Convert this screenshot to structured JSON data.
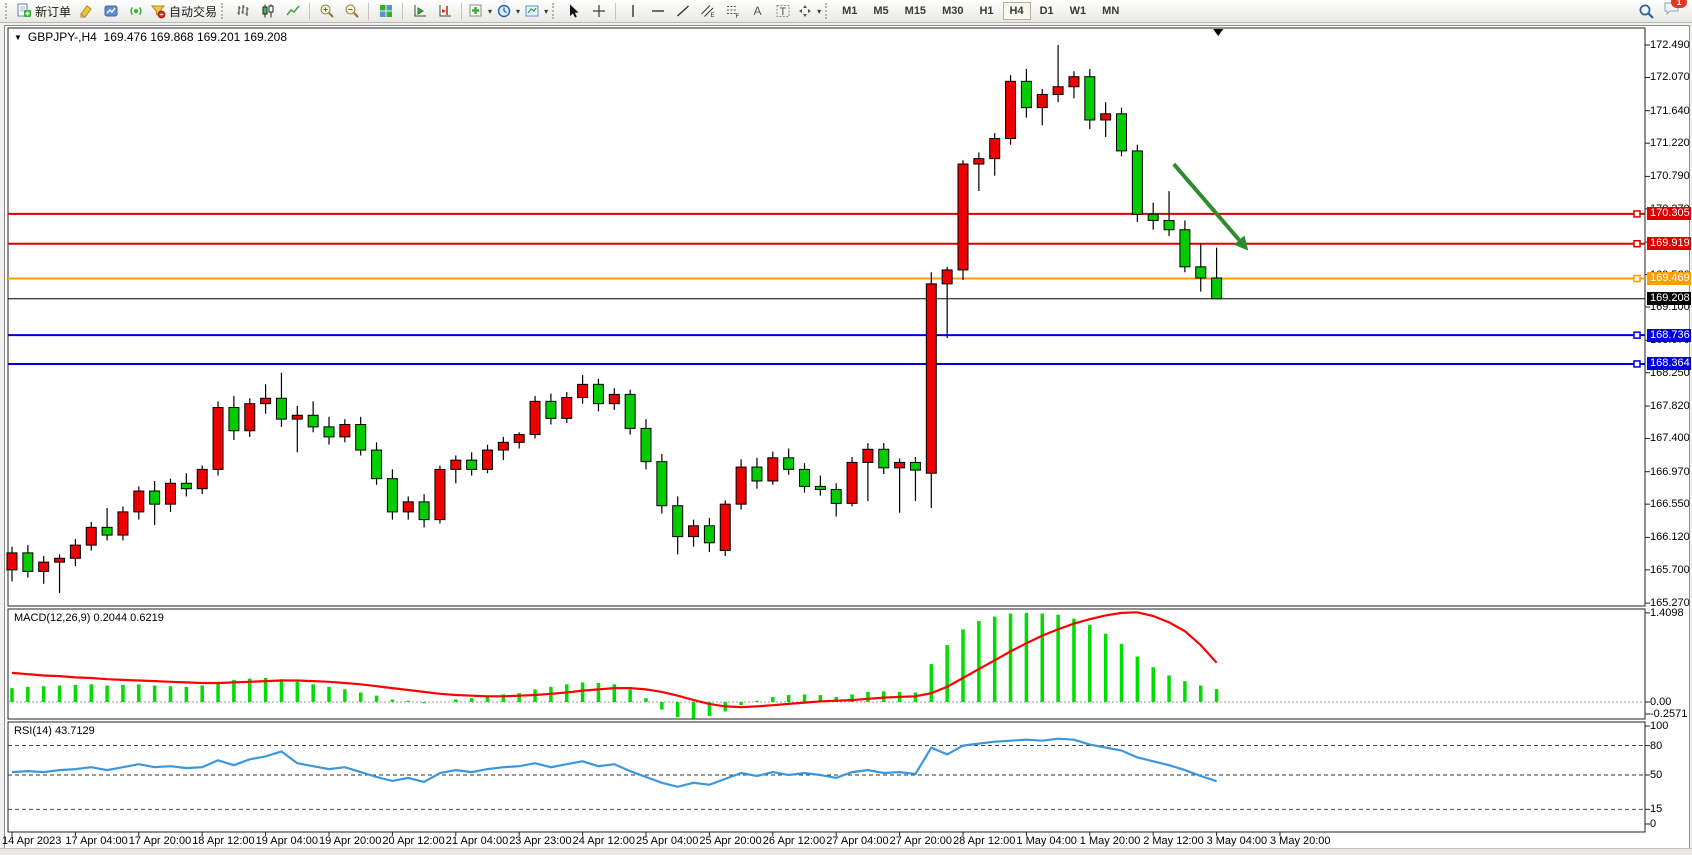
{
  "toolbar": {
    "new_order_label": "新订单",
    "autotrading_label": "自动交易",
    "timeframes": [
      "M1",
      "M5",
      "M15",
      "M30",
      "H1",
      "H4",
      "D1",
      "W1",
      "MN"
    ],
    "active_timeframe": "H4",
    "notification_count": "1",
    "icons": [
      "new-order-icon",
      "metaeditor-icon",
      "market-watch-icon",
      "signals-icon",
      "autotrading-icon",
      "bar-chart-icon",
      "candlestick-icon",
      "line-chart-icon",
      "zoom-in-icon",
      "zoom-out-icon",
      "tile-windows-icon",
      "auto-scroll-icon",
      "chart-shift-icon",
      "indicators-icon",
      "periods-icon",
      "templates-icon",
      "cursor-icon",
      "crosshair-icon",
      "vertical-line-icon",
      "horizontal-line-icon",
      "trendline-icon",
      "channel-icon",
      "fibonacci-icon",
      "text-icon",
      "text-label-icon",
      "shapes-icon",
      "search-icon",
      "chat-icon"
    ]
  },
  "chart": {
    "title_symbol": "GBPJPY-,H4",
    "title_ohlc": "169.476 169.868 169.201 169.208",
    "macd_label": "MACD(12,26,9) 0.2044 0.6219",
    "rsi_label": "RSI(14) 43.7129"
  },
  "chart_data": {
    "type": "candlestick",
    "symbol": "GBPJPY-",
    "timeframe": "H4",
    "current_ohlc": {
      "open": 169.476,
      "high": 169.868,
      "low": 169.201,
      "close": 169.208
    },
    "colors": {
      "bull": "#ee0000",
      "bear": "#00cc00",
      "wick": "#000000",
      "macd_hist": "#00dd00",
      "macd_signal": "#ff0000",
      "rsi_line": "#3c96dc",
      "arrow": "#2e8b2e",
      "line_red": "#dd0000",
      "line_orange": "#ff9c00",
      "line_blue": "#0000dd",
      "line_current": "#000000"
    },
    "price_panel": {
      "ylim": [
        165.23,
        172.71
      ],
      "yticks": [
        "172.490",
        "172.070",
        "171.640",
        "171.220",
        "170.790",
        "170.370",
        "169.940",
        "169.520",
        "169.100",
        "168.670",
        "168.250",
        "167.820",
        "167.400",
        "166.970",
        "166.550",
        "166.120",
        "165.700",
        "165.270"
      ],
      "hlines": [
        {
          "price": 170.305,
          "label": "170.305",
          "color": "#dd0000"
        },
        {
          "price": 169.919,
          "label": "169.919",
          "color": "#dd0000"
        },
        {
          "price": 169.469,
          "label": "169.469",
          "color": "#ff9c00"
        },
        {
          "price": 168.736,
          "label": "168.736",
          "color": "#0000dd"
        },
        {
          "price": 168.364,
          "label": "168.364",
          "color": "#0000dd"
        }
      ],
      "current_price": {
        "price": 169.208,
        "label": "169.208",
        "color": "#000000"
      },
      "arrow": {
        "from_bar": 73.3,
        "from_price": 170.95,
        "to_bar": 78.0,
        "to_price": 169.83
      },
      "marker_bar": 76.1,
      "first_bar_time": "14 Apr 2023 12:00",
      "candles": [
        [
          165.7,
          166.0,
          165.55,
          165.92
        ],
        [
          165.92,
          166.02,
          165.6,
          165.68
        ],
        [
          165.68,
          165.88,
          165.52,
          165.8
        ],
        [
          165.8,
          165.9,
          165.4,
          165.85
        ],
        [
          165.85,
          166.1,
          165.75,
          166.02
        ],
        [
          166.02,
          166.32,
          165.95,
          166.25
        ],
        [
          166.25,
          166.5,
          166.08,
          166.15
        ],
        [
          166.15,
          166.52,
          166.08,
          166.45
        ],
        [
          166.45,
          166.78,
          166.35,
          166.72
        ],
        [
          166.72,
          166.85,
          166.28,
          166.55
        ],
        [
          166.55,
          166.88,
          166.45,
          166.82
        ],
        [
          166.82,
          166.95,
          166.65,
          166.75
        ],
        [
          166.75,
          167.05,
          166.68,
          167.0
        ],
        [
          167.0,
          167.88,
          166.92,
          167.8
        ],
        [
          167.8,
          167.95,
          167.38,
          167.5
        ],
        [
          167.5,
          167.92,
          167.42,
          167.85
        ],
        [
          167.85,
          168.1,
          167.72,
          167.92
        ],
        [
          167.92,
          168.25,
          167.55,
          167.65
        ],
        [
          167.65,
          167.82,
          167.22,
          167.7
        ],
        [
          167.7,
          167.88,
          167.48,
          167.55
        ],
        [
          167.55,
          167.68,
          167.32,
          167.42
        ],
        [
          167.42,
          167.65,
          167.35,
          167.58
        ],
        [
          167.58,
          167.68,
          167.18,
          167.25
        ],
        [
          167.25,
          167.35,
          166.8,
          166.88
        ],
        [
          166.88,
          167.0,
          166.35,
          166.45
        ],
        [
          166.45,
          166.65,
          166.35,
          166.58
        ],
        [
          166.58,
          166.68,
          166.25,
          166.35
        ],
        [
          166.35,
          167.05,
          166.3,
          167.0
        ],
        [
          167.0,
          167.18,
          166.82,
          167.12
        ],
        [
          167.12,
          167.22,
          166.92,
          167.0
        ],
        [
          167.0,
          167.32,
          166.95,
          167.25
        ],
        [
          167.25,
          167.42,
          167.12,
          167.35
        ],
        [
          167.35,
          167.48,
          167.27,
          167.45
        ],
        [
          167.45,
          167.95,
          167.4,
          167.88
        ],
        [
          167.88,
          167.98,
          167.58,
          167.66
        ],
        [
          167.66,
          168.0,
          167.6,
          167.93
        ],
        [
          167.93,
          168.22,
          167.85,
          168.1
        ],
        [
          168.1,
          168.17,
          167.75,
          167.85
        ],
        [
          167.85,
          168.05,
          167.77,
          167.97
        ],
        [
          167.97,
          168.03,
          167.45,
          167.53
        ],
        [
          167.53,
          167.65,
          167.0,
          167.1
        ],
        [
          167.1,
          167.2,
          166.43,
          166.53
        ],
        [
          166.53,
          166.65,
          165.9,
          166.13
        ],
        [
          166.13,
          166.35,
          166.0,
          166.27
        ],
        [
          166.27,
          166.37,
          165.93,
          166.05
        ],
        [
          165.95,
          166.6,
          165.88,
          166.55
        ],
        [
          166.55,
          167.13,
          166.48,
          167.03
        ],
        [
          167.03,
          167.15,
          166.75,
          166.85
        ],
        [
          166.85,
          167.23,
          166.8,
          167.15
        ],
        [
          167.15,
          167.27,
          166.93,
          167.0
        ],
        [
          167.0,
          167.08,
          166.7,
          166.78
        ],
        [
          166.78,
          166.92,
          166.66,
          166.74
        ],
        [
          166.74,
          166.82,
          166.39,
          166.56
        ],
        [
          166.56,
          167.16,
          166.52,
          167.09
        ],
        [
          167.09,
          167.34,
          166.59,
          167.26
        ],
        [
          167.26,
          167.34,
          166.94,
          167.02
        ],
        [
          167.02,
          167.14,
          166.44,
          167.09
        ],
        [
          167.09,
          167.16,
          166.59,
          166.99
        ],
        [
          166.95,
          169.55,
          166.5,
          169.4
        ],
        [
          169.4,
          169.62,
          168.7,
          169.58
        ],
        [
          169.58,
          171.0,
          169.45,
          170.95
        ],
        [
          170.95,
          171.1,
          170.6,
          171.02
        ],
        [
          171.02,
          171.35,
          170.8,
          171.28
        ],
        [
          171.28,
          172.1,
          171.2,
          172.02
        ],
        [
          172.02,
          172.18,
          171.55,
          171.68
        ],
        [
          171.68,
          171.92,
          171.45,
          171.85
        ],
        [
          171.85,
          172.49,
          171.75,
          171.95
        ],
        [
          171.95,
          172.15,
          171.8,
          172.08
        ],
        [
          172.08,
          172.18,
          171.4,
          171.52
        ],
        [
          171.52,
          171.75,
          171.3,
          171.6
        ],
        [
          171.6,
          171.68,
          171.05,
          171.12
        ],
        [
          171.12,
          171.2,
          170.2,
          170.3
        ],
        [
          170.3,
          170.45,
          170.1,
          170.22
        ],
        [
          170.22,
          170.6,
          170.02,
          170.1
        ],
        [
          170.1,
          170.22,
          169.55,
          169.62
        ],
        [
          169.62,
          169.92,
          169.3,
          169.476
        ],
        [
          169.476,
          169.868,
          169.201,
          169.208
        ]
      ]
    },
    "macd_panel": {
      "label": "MACD(12,26,9) 0.2044 0.6219",
      "yticks": [
        {
          "value": 1.4098,
          "label": "1.4098"
        },
        {
          "value": 0.0,
          "label": "0.00"
        },
        {
          "value": -0.2571,
          "label": "-0.2571"
        }
      ],
      "histogram": [
        0.22,
        0.24,
        0.25,
        0.26,
        0.27,
        0.28,
        0.26,
        0.27,
        0.28,
        0.26,
        0.25,
        0.24,
        0.26,
        0.32,
        0.35,
        0.37,
        0.38,
        0.36,
        0.32,
        0.28,
        0.24,
        0.2,
        0.15,
        0.1,
        0.04,
        0.02,
        -0.02,
        0.0,
        0.04,
        0.06,
        0.09,
        0.12,
        0.14,
        0.2,
        0.24,
        0.28,
        0.31,
        0.3,
        0.28,
        0.2,
        0.06,
        -0.12,
        -0.24,
        -0.26,
        -0.22,
        -0.15,
        -0.05,
        0.02,
        0.08,
        0.11,
        0.12,
        0.11,
        0.08,
        0.12,
        0.16,
        0.17,
        0.16,
        0.15,
        0.6,
        0.9,
        1.15,
        1.28,
        1.35,
        1.4,
        1.41,
        1.4,
        1.38,
        1.32,
        1.22,
        1.08,
        0.92,
        0.72,
        0.55,
        0.42,
        0.33,
        0.26,
        0.2044
      ],
      "signal": [
        0.46,
        0.44,
        0.42,
        0.41,
        0.39,
        0.38,
        0.36,
        0.35,
        0.34,
        0.33,
        0.32,
        0.31,
        0.3,
        0.3,
        0.31,
        0.32,
        0.33,
        0.34,
        0.34,
        0.33,
        0.32,
        0.3,
        0.28,
        0.25,
        0.22,
        0.19,
        0.16,
        0.13,
        0.11,
        0.1,
        0.09,
        0.09,
        0.1,
        0.11,
        0.13,
        0.15,
        0.18,
        0.2,
        0.22,
        0.22,
        0.2,
        0.16,
        0.1,
        0.03,
        -0.03,
        -0.07,
        -0.08,
        -0.07,
        -0.05,
        -0.03,
        -0.01,
        0.01,
        0.02,
        0.03,
        0.05,
        0.07,
        0.08,
        0.09,
        0.14,
        0.24,
        0.38,
        0.52,
        0.66,
        0.8,
        0.93,
        1.05,
        1.15,
        1.24,
        1.31,
        1.37,
        1.41,
        1.42,
        1.36,
        1.26,
        1.12,
        0.9,
        0.6219
      ]
    },
    "rsi_panel": {
      "label": "RSI(14) 43.7129",
      "yticks": [
        {
          "value": 100,
          "label": "100"
        },
        {
          "value": 80,
          "label": "80"
        },
        {
          "value": 50,
          "label": "50"
        },
        {
          "value": 15,
          "label": "15"
        },
        {
          "value": 0,
          "label": "0"
        }
      ],
      "levels": [
        80,
        50,
        15
      ],
      "values": [
        53,
        54,
        53,
        55,
        56,
        58,
        55,
        58,
        61,
        58,
        59,
        57,
        58,
        65,
        60,
        66,
        69,
        74,
        62,
        59,
        56,
        58,
        53,
        48,
        44,
        47,
        43,
        52,
        55,
        53,
        56,
        58,
        59,
        62,
        58,
        61,
        64,
        59,
        61,
        54,
        48,
        42,
        38,
        42,
        40,
        46,
        52,
        49,
        53,
        50,
        52,
        50,
        47,
        53,
        55,
        52,
        53,
        51,
        78,
        71,
        80,
        82,
        84,
        85,
        86,
        85,
        87,
        86,
        81,
        78,
        75,
        68,
        64,
        60,
        55,
        49,
        43.7129
      ]
    },
    "xlabels": [
      "14 Apr 2023",
      "17 Apr 04:00",
      "17 Apr 20:00",
      "18 Apr 12:00",
      "19 Apr 04:00",
      "19 Apr 20:00",
      "20 Apr 12:00",
      "21 Apr 04:00",
      "23 Apr 23:00",
      "24 Apr 12:00",
      "25 Apr 04:00",
      "25 Apr 20:00",
      "26 Apr 12:00",
      "27 Apr 04:00",
      "27 Apr 20:00",
      "28 Apr 12:00",
      "1 May 04:00",
      "1 May 20:00",
      "2 May 12:00",
      "3 May 04:00",
      "3 May 20:00"
    ]
  }
}
